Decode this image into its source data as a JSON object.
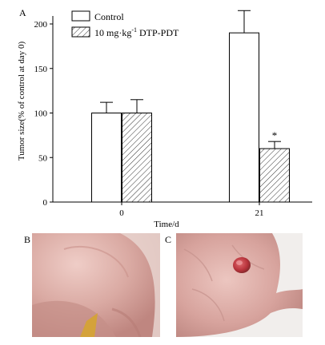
{
  "panels": {
    "a_letter": "A",
    "b_letter": "B",
    "c_letter": "C"
  },
  "chart_data": {
    "type": "bar",
    "categories": [
      "0",
      "21"
    ],
    "series": [
      {
        "name": "Control",
        "values": [
          100,
          190
        ],
        "errors": [
          12,
          25
        ],
        "fill": "#ffffff"
      },
      {
        "name": "10 mg·kg",
        "name_sup": "-1",
        "name_tail": " DTP-PDT",
        "values": [
          100,
          60
        ],
        "errors": [
          15,
          8
        ],
        "fill": "hatch"
      }
    ],
    "annotations": [
      {
        "series": 1,
        "category": 1,
        "text": "*"
      }
    ],
    "xlabel": "Time/d",
    "ylabel": "Tumor size(% of control at day 0)",
    "ylim": [
      0,
      200
    ],
    "yticks": [
      0,
      50,
      100,
      150,
      200
    ],
    "legend_position": "top-left",
    "grid": false
  },
  "colors": {
    "axis": "#000000",
    "hatch": "#333333",
    "skin_light": "#e9c3bd",
    "skin_mid": "#d49e98",
    "skin_dark": "#b97c77",
    "tumor": "#b8333b",
    "photo_bg": "#f1eeec",
    "hide_shadow": "#c9a19b",
    "yellow_patch": "#d4a23a"
  }
}
